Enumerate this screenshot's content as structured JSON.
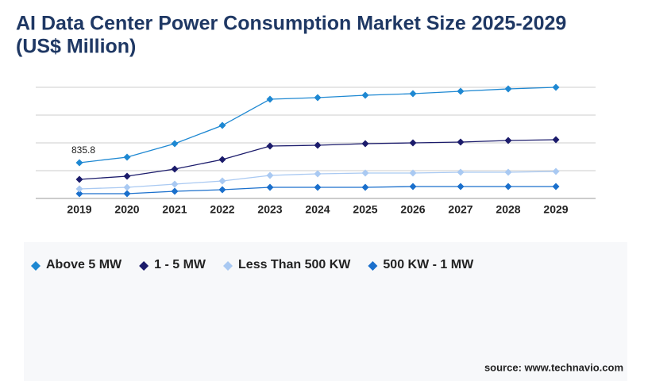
{
  "chart_data": {
    "type": "line",
    "title": "AI Data Center Power Consumption Market Size 2025-2029",
    "subtitle": "(US$ Million)",
    "categories": [
      "2019",
      "2020",
      "2021",
      "2022",
      "2023",
      "2024",
      "2025",
      "2026",
      "2027",
      "2028",
      "2029"
    ],
    "series": [
      {
        "name": "Above 5 MW",
        "color": "#1e88d2",
        "values": [
          835.8,
          966,
          1281,
          1708,
          2321,
          2358,
          2414,
          2451,
          2507,
          2563,
          2600
        ],
        "value_labels": [
          "835.8",
          null,
          null,
          null,
          null,
          null,
          null,
          null,
          null,
          null,
          null
        ]
      },
      {
        "name": "1 - 5 MW",
        "color": "#1b1b6b",
        "values": [
          446,
          520,
          687,
          910,
          1226,
          1244,
          1281,
          1300,
          1318,
          1356,
          1374
        ]
      },
      {
        "name": "Less Than 500 KW",
        "color": "#a9c9f2",
        "values": [
          223,
          260,
          334,
          409,
          539,
          576,
          594,
          594,
          613,
          613,
          631
        ]
      },
      {
        "name": "500 KW - 1 MW",
        "color": "#1a6fcc",
        "values": [
          111,
          111,
          167,
          204,
          260,
          260,
          260,
          279,
          279,
          279,
          279
        ]
      }
    ],
    "ylim": [
      0,
      2600
    ],
    "yticks": [
      0,
      650,
      1300,
      1950,
      2600
    ],
    "ytick_labels": false,
    "grid": true,
    "source": "source: www.technavio.com"
  }
}
